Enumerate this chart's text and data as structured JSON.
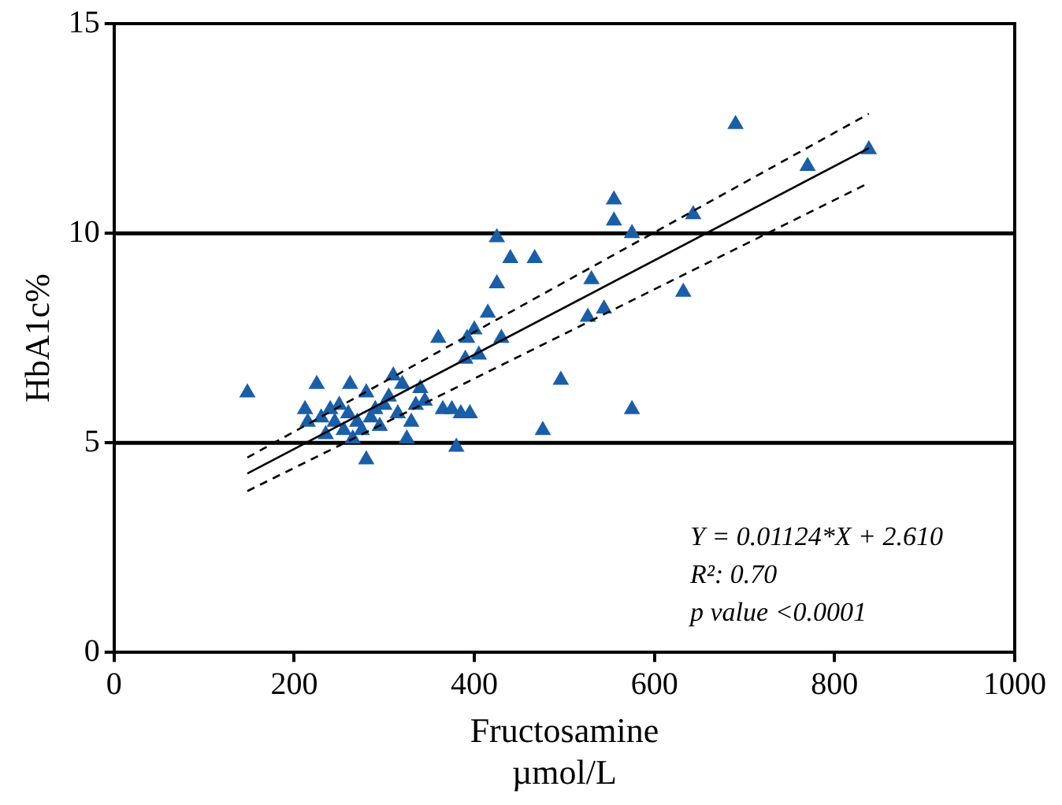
{
  "chart_data": {
    "type": "scatter",
    "xlabel": "Fructosamine\nµmol/L",
    "ylabel": "HbA1c%",
    "xlim": [
      0,
      1000
    ],
    "xticks": [
      0,
      200,
      400,
      600,
      800,
      1000
    ],
    "ylim": [
      0,
      15
    ],
    "yticks": [
      0,
      5,
      10,
      15
    ],
    "grid": false,
    "marker": "triangle",
    "ref_lines": [
      {
        "axis": "y",
        "value": 5,
        "color": "#000000"
      },
      {
        "axis": "y",
        "value": 10,
        "color": "#000000"
      }
    ],
    "annotations": [
      "Y = 0.01124*X + 2.610",
      "R²: 0.70",
      "p value <0.0001"
    ],
    "series": [
      {
        "color": "#1a5ea8",
        "x": [
          148,
          212,
          215,
          225,
          230,
          235,
          240,
          245,
          250,
          255,
          260,
          262,
          265,
          270,
          275,
          280,
          280,
          285,
          290,
          295,
          300,
          305,
          310,
          315,
          320,
          325,
          330,
          335,
          340,
          345,
          360,
          365,
          375,
          380,
          385,
          390,
          392,
          395,
          400,
          405,
          415,
          425,
          425,
          430,
          440,
          467,
          476,
          496,
          526,
          530,
          544,
          555,
          555,
          575,
          575,
          632,
          643,
          690,
          770,
          838
        ],
        "values": [
          6.2,
          5.8,
          5.5,
          6.4,
          5.6,
          5.2,
          5.8,
          5.5,
          5.9,
          5.3,
          5.7,
          6.4,
          5.1,
          5.5,
          5.3,
          6.2,
          4.6,
          5.6,
          5.8,
          5.4,
          5.9,
          6.1,
          6.6,
          5.7,
          6.4,
          5.1,
          5.5,
          5.9,
          6.3,
          6.0,
          7.5,
          5.8,
          5.8,
          4.9,
          5.7,
          7.0,
          7.5,
          5.7,
          7.7,
          7.1,
          8.1,
          8.8,
          9.9,
          7.5,
          9.4,
          9.4,
          5.3,
          6.5,
          8.0,
          8.9,
          8.2,
          10.8,
          10.3,
          10.0,
          5.8,
          8.6,
          10.45,
          12.6,
          11.6,
          12.0
        ]
      },
      {
        "type": "line",
        "color": "#000000",
        "line_style": "solid",
        "marker": "none",
        "x": [
          148,
          838
        ],
        "values": [
          4.27,
          12.03
        ]
      },
      {
        "type": "line",
        "color": "#000000",
        "line_style": "dashed",
        "marker": "none",
        "x": [
          148,
          838
        ],
        "values": [
          4.65,
          12.85
        ]
      },
      {
        "type": "line",
        "color": "#000000",
        "line_style": "dashed",
        "marker": "none",
        "x": [
          148,
          838
        ],
        "values": [
          3.85,
          11.2
        ]
      }
    ]
  }
}
